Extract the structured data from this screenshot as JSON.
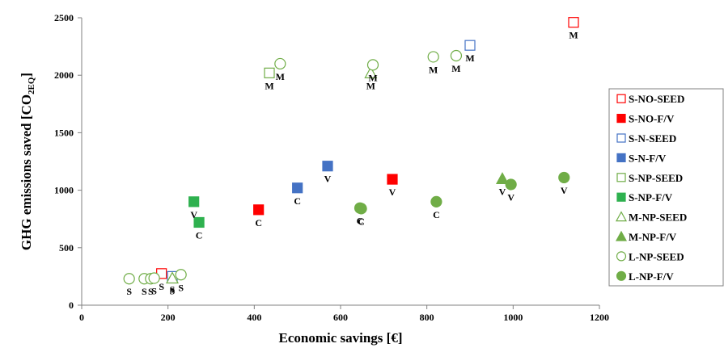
{
  "chart_data": {
    "type": "scatter",
    "xlabel": "Economic savings [€]",
    "ylabel": "GHG emissions saved [CO",
    "ylabel_sub": "2EQ",
    "ylabel_close": "]",
    "xlim": [
      0,
      1200
    ],
    "ylim": [
      0,
      2500
    ],
    "xticks": [
      0,
      200,
      400,
      600,
      800,
      1000,
      1200
    ],
    "yticks": [
      0,
      500,
      1000,
      1500,
      2000,
      2500
    ],
    "grid": false,
    "legend_position": "right",
    "series": [
      {
        "name": "S-NO-SEED",
        "marker": "square",
        "filled": false,
        "color": "#ff0000",
        "points": [
          {
            "x": 185,
            "y": 275,
            "label": "S"
          },
          {
            "x": 1140,
            "y": 2460,
            "label": "M"
          }
        ]
      },
      {
        "name": "S-NO-F/V",
        "marker": "square",
        "filled": true,
        "color": "#ff0000",
        "points": [
          {
            "x": 410,
            "y": 830,
            "label": "C"
          },
          {
            "x": 720,
            "y": 1095,
            "label": "V"
          }
        ]
      },
      {
        "name": "S-N-SEED",
        "marker": "square",
        "filled": false,
        "color": "#4472c4",
        "points": [
          {
            "x": 210,
            "y": 250,
            "label": "S"
          },
          {
            "x": 900,
            "y": 2260,
            "label": "M"
          }
        ]
      },
      {
        "name": "S-N-F/V",
        "marker": "square",
        "filled": true,
        "color": "#4472c4",
        "points": [
          {
            "x": 500,
            "y": 1020,
            "label": "C"
          },
          {
            "x": 570,
            "y": 1210,
            "label": "V"
          }
        ]
      },
      {
        "name": "S-NP-SEED",
        "marker": "square",
        "filled": false,
        "color": "#70ad47",
        "points": [
          {
            "x": 435,
            "y": 2020,
            "label": "M"
          }
        ]
      },
      {
        "name": "S-NP-F/V",
        "marker": "square",
        "filled": true,
        "color": "#2eb14f",
        "points": [
          {
            "x": 260,
            "y": 900,
            "label": "V"
          },
          {
            "x": 272,
            "y": 720,
            "label": "C"
          }
        ]
      },
      {
        "name": "M-NP-SEED",
        "marker": "triangle",
        "filled": false,
        "color": "#70ad47",
        "points": [
          {
            "x": 210,
            "y": 235,
            "label": "S"
          },
          {
            "x": 670,
            "y": 2020,
            "label": "M"
          }
        ]
      },
      {
        "name": "M-NP-F/V",
        "marker": "triangle",
        "filled": true,
        "color": "#70ad47",
        "points": [
          {
            "x": 975,
            "y": 1100,
            "label": "V"
          }
        ]
      },
      {
        "name": "L-NP-SEED",
        "marker": "circle",
        "filled": false,
        "color": "#70ad47",
        "points": [
          {
            "x": 110,
            "y": 230,
            "label": "S"
          },
          {
            "x": 145,
            "y": 230,
            "label": "S"
          },
          {
            "x": 160,
            "y": 230,
            "label": "S"
          },
          {
            "x": 168,
            "y": 235,
            "label": "S"
          },
          {
            "x": 230,
            "y": 265,
            "label": "S"
          },
          {
            "x": 460,
            "y": 2100,
            "label": "M"
          },
          {
            "x": 675,
            "y": 2090,
            "label": "M"
          },
          {
            "x": 815,
            "y": 2160,
            "label": "M"
          },
          {
            "x": 868,
            "y": 2170,
            "label": "M"
          }
        ]
      },
      {
        "name": "L-NP-F/V",
        "marker": "circle",
        "filled": true,
        "color": "#70ad47",
        "points": [
          {
            "x": 645,
            "y": 845,
            "label": "C"
          },
          {
            "x": 648,
            "y": 840,
            "label": "C"
          },
          {
            "x": 822,
            "y": 900,
            "label": "C"
          },
          {
            "x": 995,
            "y": 1050,
            "label": "V"
          },
          {
            "x": 1118,
            "y": 1110,
            "label": "V"
          }
        ]
      }
    ]
  }
}
